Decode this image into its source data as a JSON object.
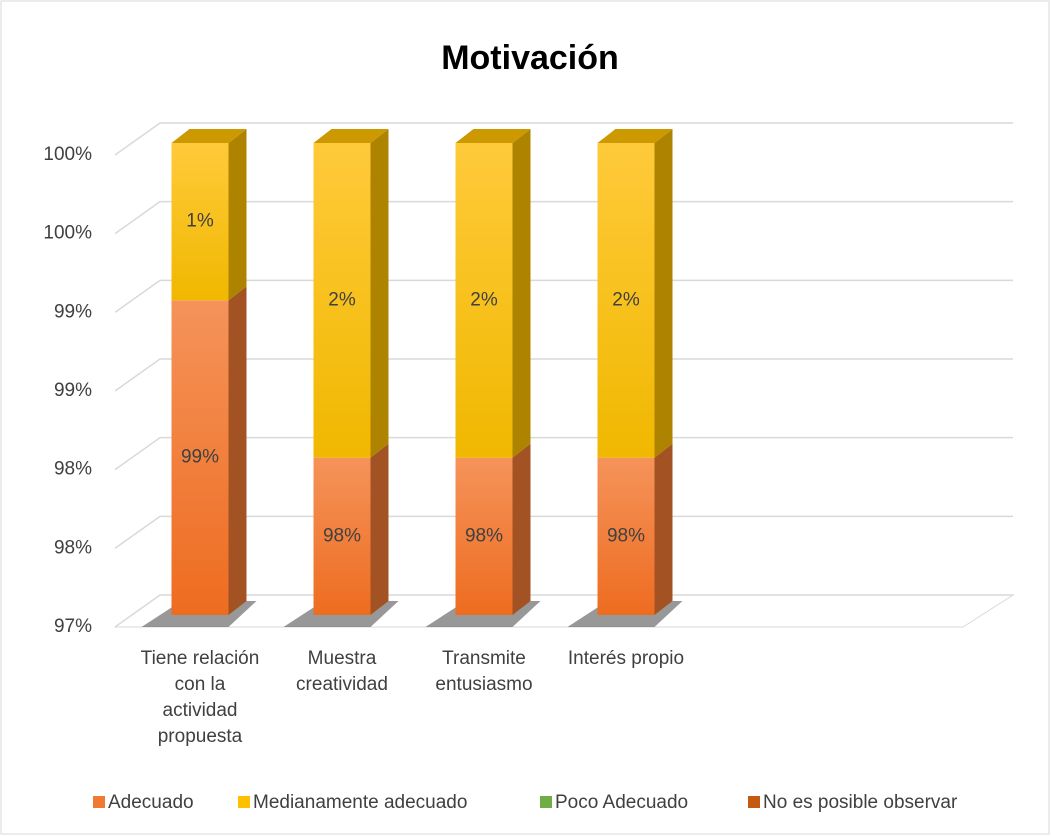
{
  "chart_data": {
    "type": "bar3d_stacked",
    "title": "Motivación",
    "categories": [
      "Tiene relación con la actividad propuesta",
      "Muestra creatividad",
      "Transmite entusiasmo",
      "Interés propio"
    ],
    "series": [
      {
        "name": "Adecuado",
        "color": "#f07a33",
        "values": [
          99,
          98,
          98,
          98
        ],
        "value_labels": [
          "99%",
          "98%",
          "98%",
          "98%"
        ]
      },
      {
        "name": "Medianamente adecuado",
        "color": "#ffc000",
        "values": [
          1,
          2,
          2,
          2
        ],
        "value_labels": [
          "1%",
          "2%",
          "2%",
          "2%"
        ]
      },
      {
        "name": "Poco Adecuado",
        "color": "#70ad47",
        "values": [
          0,
          0,
          0,
          0
        ]
      },
      {
        "name": "No es posible observar",
        "color": "#c55a11",
        "values": [
          0,
          0,
          0,
          0
        ]
      }
    ],
    "ylim": [
      97,
      100
    ],
    "yticks": [
      {
        "value": 97,
        "label": "97%"
      },
      {
        "value": 97.5,
        "label": "98%"
      },
      {
        "value": 98,
        "label": "98%"
      },
      {
        "value": 98.5,
        "label": "99%"
      },
      {
        "value": 99,
        "label": "99%"
      },
      {
        "value": 99.5,
        "label": "100%"
      },
      {
        "value": 100,
        "label": "100%"
      }
    ],
    "grid": true,
    "legend": "bottom"
  }
}
